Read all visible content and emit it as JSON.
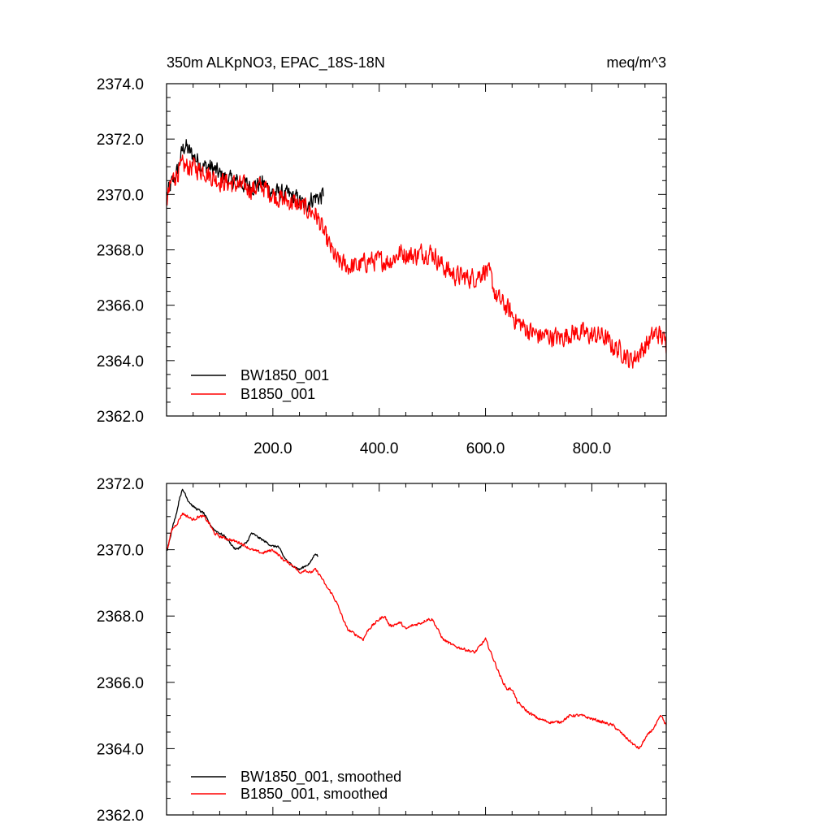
{
  "chart_data": [
    {
      "type": "line",
      "title": "350m ALKpNO3, EPAC_18S-18N",
      "units": "meq/m^3",
      "xlim": [
        0,
        940
      ],
      "ylim": [
        2362,
        2374
      ],
      "y_major_ticks": [
        2362,
        2364,
        2366,
        2368,
        2370,
        2372,
        2374
      ],
      "y_tick_labels": [
        "2362.0",
        "2364.0",
        "2366.0",
        "2368.0",
        "2370.0",
        "2372.0",
        "2374.0"
      ],
      "x_major_ticks": [
        200,
        400,
        600,
        800
      ],
      "x_tick_labels": [
        "200.0",
        "400.0",
        "600.0",
        "800.0"
      ],
      "legend_position": "bottom-left",
      "series": [
        {
          "name": "BW1850_001",
          "color": "#000000",
          "noise": 0.45,
          "x": [
            1,
            10,
            20,
            30,
            35,
            40,
            50,
            60,
            70,
            80,
            90,
            100,
            120,
            140,
            160,
            180,
            200,
            220,
            240,
            260,
            270,
            280,
            290,
            295
          ],
          "y": [
            2370.0,
            2370.4,
            2370.8,
            2371.6,
            2371.8,
            2371.6,
            2371.4,
            2371.2,
            2371.0,
            2371.0,
            2370.9,
            2370.7,
            2370.5,
            2370.4,
            2370.3,
            2370.4,
            2370.1,
            2370.0,
            2369.9,
            2369.6,
            2369.8,
            2369.9,
            2369.9,
            2370.0
          ]
        },
        {
          "name": "B1850_001",
          "color": "#ff0000",
          "noise": 0.5,
          "x": [
            1,
            10,
            20,
            30,
            40,
            50,
            60,
            70,
            80,
            100,
            120,
            140,
            160,
            180,
            200,
            220,
            240,
            260,
            270,
            280,
            290,
            300,
            310,
            320,
            340,
            360,
            380,
            400,
            420,
            440,
            460,
            470,
            480,
            500,
            520,
            540,
            560,
            580,
            600,
            610,
            620,
            640,
            660,
            680,
            700,
            720,
            740,
            760,
            780,
            800,
            820,
            840,
            860,
            870,
            880,
            890,
            900,
            920,
            930,
            940
          ],
          "y": [
            2369.8,
            2370.5,
            2370.8,
            2371.0,
            2371.0,
            2371.0,
            2370.9,
            2370.9,
            2370.7,
            2370.5,
            2370.4,
            2370.3,
            2370.2,
            2370.3,
            2370.0,
            2369.8,
            2369.7,
            2369.5,
            2369.4,
            2369.3,
            2368.9,
            2368.4,
            2368.0,
            2367.6,
            2367.4,
            2367.4,
            2367.6,
            2367.6,
            2367.6,
            2367.9,
            2367.8,
            2367.8,
            2367.9,
            2367.9,
            2367.4,
            2367.1,
            2367.0,
            2367.0,
            2367.3,
            2367.0,
            2366.3,
            2365.9,
            2365.4,
            2365.1,
            2364.9,
            2364.9,
            2364.8,
            2365.0,
            2365.0,
            2364.9,
            2364.9,
            2364.5,
            2364.3,
            2364.0,
            2364.1,
            2364.3,
            2364.5,
            2365.0,
            2364.9,
            2364.6
          ]
        }
      ]
    },
    {
      "type": "line",
      "xlim": [
        0,
        940
      ],
      "ylim": [
        2362,
        2372
      ],
      "y_major_ticks": [
        2362,
        2364,
        2366,
        2368,
        2370,
        2372
      ],
      "y_tick_labels": [
        "2362.0",
        "2364.0",
        "2366.0",
        "2368.0",
        "2370.0",
        "2372.0"
      ],
      "x_major_ticks": [
        200,
        400,
        600,
        800
      ],
      "legend_position": "bottom-left",
      "series": [
        {
          "name": "BW1850_001, smoothed",
          "color": "#000000",
          "noise": 0.05,
          "x": [
            1,
            10,
            20,
            25,
            30,
            35,
            40,
            50,
            60,
            70,
            80,
            90,
            100,
            110,
            120,
            130,
            140,
            150,
            160,
            170,
            180,
            190,
            200,
            210,
            220,
            230,
            240,
            250,
            260,
            270,
            280,
            285
          ],
          "y": [
            2370.0,
            2370.6,
            2371.2,
            2371.6,
            2371.8,
            2371.7,
            2371.5,
            2371.3,
            2371.2,
            2371.1,
            2370.8,
            2370.6,
            2370.5,
            2370.4,
            2370.2,
            2370.0,
            2370.1,
            2370.2,
            2370.5,
            2370.4,
            2370.3,
            2370.2,
            2370.1,
            2370.1,
            2369.8,
            2369.6,
            2369.5,
            2369.4,
            2369.5,
            2369.6,
            2369.9,
            2369.8
          ]
        },
        {
          "name": "B1850_001, smoothed",
          "color": "#ff0000",
          "noise": 0.06,
          "x": [
            1,
            10,
            20,
            30,
            40,
            50,
            60,
            70,
            80,
            90,
            100,
            120,
            140,
            160,
            180,
            200,
            220,
            240,
            250,
            260,
            270,
            280,
            290,
            300,
            310,
            320,
            330,
            340,
            360,
            370,
            380,
            400,
            410,
            420,
            440,
            450,
            460,
            480,
            490,
            500,
            520,
            540,
            560,
            580,
            600,
            610,
            620,
            630,
            640,
            650,
            660,
            680,
            700,
            720,
            740,
            760,
            780,
            800,
            820,
            840,
            860,
            880,
            890,
            900,
            920,
            930,
            940
          ],
          "y": [
            2370.0,
            2370.6,
            2370.8,
            2371.1,
            2371.0,
            2370.9,
            2371.0,
            2371.0,
            2370.8,
            2370.5,
            2370.4,
            2370.3,
            2370.2,
            2370.0,
            2369.9,
            2370.0,
            2369.7,
            2369.5,
            2369.3,
            2369.4,
            2369.3,
            2369.4,
            2369.2,
            2368.9,
            2368.7,
            2368.4,
            2368.0,
            2367.6,
            2367.4,
            2367.3,
            2367.6,
            2367.9,
            2368.0,
            2367.7,
            2367.8,
            2367.6,
            2367.7,
            2367.8,
            2367.9,
            2367.9,
            2367.3,
            2367.1,
            2367.0,
            2366.9,
            2367.3,
            2366.9,
            2366.5,
            2366.1,
            2365.8,
            2365.8,
            2365.4,
            2365.1,
            2364.9,
            2364.8,
            2364.8,
            2365.0,
            2365.0,
            2364.9,
            2364.8,
            2364.7,
            2364.4,
            2364.1,
            2364.0,
            2364.3,
            2364.7,
            2365.0,
            2364.7
          ]
        }
      ]
    }
  ]
}
